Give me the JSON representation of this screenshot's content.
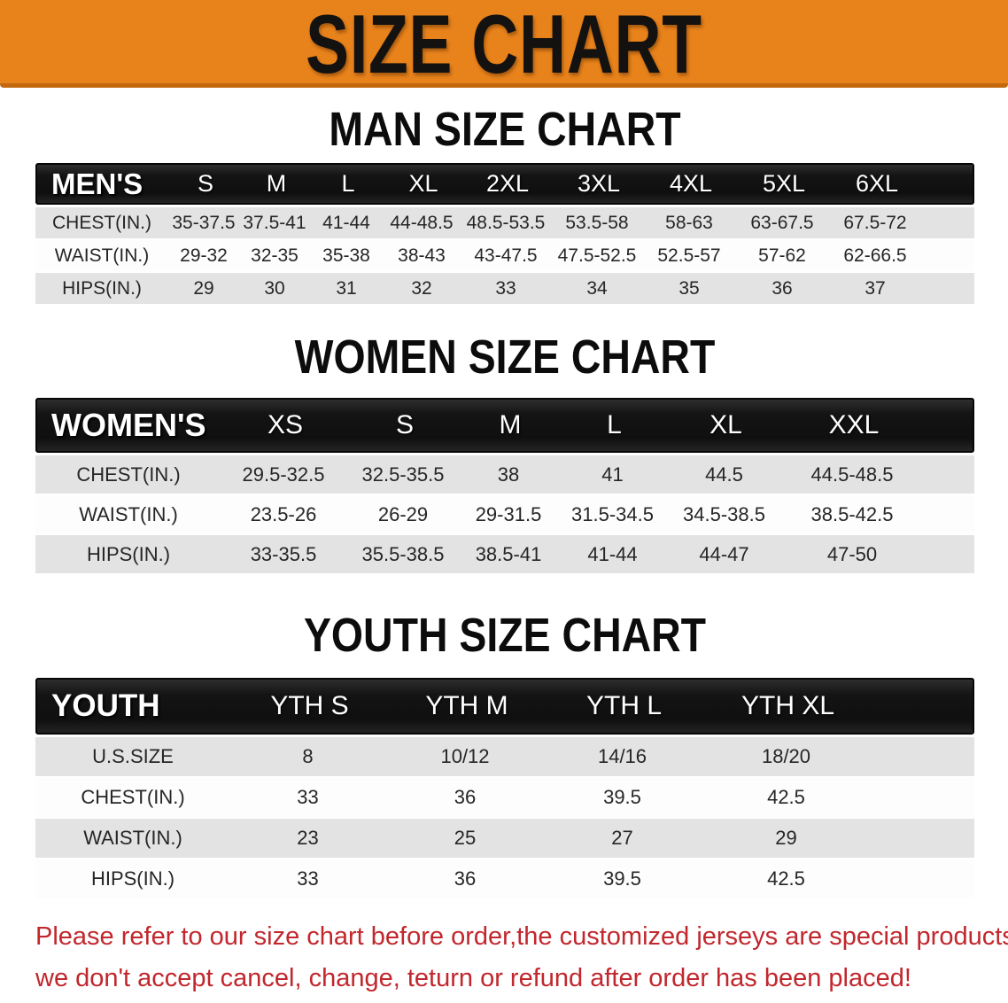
{
  "banner": {
    "title": "SIZE CHART"
  },
  "colors": {
    "banner_bg": "#e8821b",
    "banner_edge": "#c2690f",
    "header_bar": "#141414",
    "row_alt": "#e3e3e3",
    "disclaimer_text": "#c1272d"
  },
  "sections": [
    {
      "kind": "men",
      "heading": "MAN SIZE CHART",
      "table": {
        "label": "MEN'S",
        "columns": [
          "S",
          "M",
          "L",
          "XL",
          "2XL",
          "3XL",
          "4XL",
          "5XL",
          "6XL"
        ],
        "rows": [
          {
            "label": "CHEST(IN.)",
            "values": [
              "35-37.5",
              "37.5-41",
              "41-44",
              "44-48.5",
              "48.5-53.5",
              "53.5-58",
              "58-63",
              "63-67.5",
              "67.5-72"
            ]
          },
          {
            "label": "WAIST(IN.)",
            "values": [
              "29-32",
              "32-35",
              "35-38",
              "38-43",
              "43-47.5",
              "47.5-52.5",
              "52.5-57",
              "57-62",
              "62-66.5"
            ]
          },
          {
            "label": "HIPS(IN.)",
            "values": [
              "29",
              "30",
              "31",
              "32",
              "33",
              "34",
              "35",
              "36",
              "37"
            ]
          }
        ]
      }
    },
    {
      "kind": "women",
      "heading": "WOMEN SIZE CHART",
      "table": {
        "label": "WOMEN'S",
        "columns": [
          "XS",
          "S",
          "M",
          "L",
          "XL",
          "XXL"
        ],
        "rows": [
          {
            "label": "CHEST(IN.)",
            "values": [
              "29.5-32.5",
              "32.5-35.5",
              "38",
              "41",
              "44.5",
              "44.5-48.5"
            ]
          },
          {
            "label": "WAIST(IN.)",
            "values": [
              "23.5-26",
              "26-29",
              "29-31.5",
              "31.5-34.5",
              "34.5-38.5",
              "38.5-42.5"
            ]
          },
          {
            "label": "HIPS(IN.)",
            "values": [
              "33-35.5",
              "35.5-38.5",
              "38.5-41",
              "41-44",
              "44-47",
              "47-50"
            ]
          }
        ]
      }
    },
    {
      "kind": "youth",
      "heading": "YOUTH SIZE CHART",
      "table": {
        "label": "YOUTH",
        "columns": [
          "YTH S",
          "YTH M",
          "YTH L",
          "YTH XL"
        ],
        "rows": [
          {
            "label": "U.S.SIZE",
            "values": [
              "8",
              "10/12",
              "14/16",
              "18/20"
            ]
          },
          {
            "label": "CHEST(IN.)",
            "values": [
              "33",
              "36",
              "39.5",
              "42.5"
            ]
          },
          {
            "label": "WAIST(IN.)",
            "values": [
              "23",
              "25",
              "27",
              "29"
            ]
          },
          {
            "label": "HIPS(IN.)",
            "values": [
              "33",
              "36",
              "39.5",
              "42.5"
            ]
          }
        ]
      }
    }
  ],
  "disclaimer": {
    "lines": [
      "Please refer to our size chart before order,the customized jerseys are special products,",
      "we don't accept cancel, change, teturn or refund after order has been placed!"
    ]
  }
}
